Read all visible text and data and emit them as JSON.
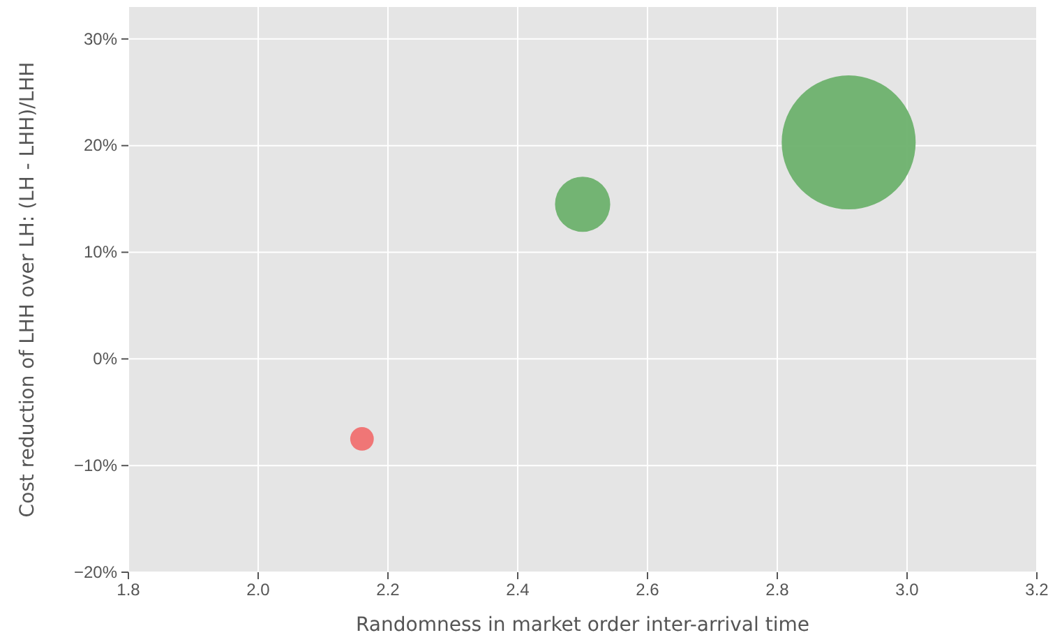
{
  "chart_data": {
    "type": "bubble",
    "xlabel": "Randomness in market order inter-arrival time",
    "ylabel": "Cost reduction of LHH over LH: (LH - LHH)/LHH",
    "x": [
      2.16,
      2.5,
      2.91
    ],
    "values": [
      -7.5,
      14.5,
      20.3
    ],
    "sizes": [
      0.031,
      0.17,
      1
    ],
    "colors": [
      "#f07070",
      "#6db16d",
      "#6db16d"
    ],
    "xlim": [
      1.8,
      3.2
    ],
    "xticks": [
      1.8,
      {
        "value": 2,
        "label": "2.0"
      },
      2.2,
      2.4,
      2.6,
      2.8,
      {
        "value": 3,
        "label": "3.0"
      },
      3.2
    ],
    "ylim": [
      -20,
      33
    ],
    "yticks": [
      {
        "value": -20,
        "label": "−20%"
      },
      {
        "value": -10,
        "label": "−10%"
      },
      {
        "value": 0,
        "label": "0%"
      },
      {
        "value": 10,
        "label": "10%"
      },
      {
        "value": 20,
        "label": "20%"
      },
      {
        "value": 30,
        "label": "30%"
      }
    ],
    "grid": true
  }
}
